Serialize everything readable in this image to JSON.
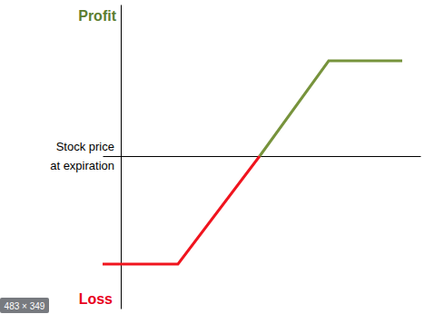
{
  "chart_data": {
    "type": "line",
    "xlabel": [
      "Stock price",
      "at expiration"
    ],
    "annotations": [
      "Profit",
      "Loss",
      "483 × 349"
    ],
    "x": [
      -20,
      63,
      153,
      229,
      310
    ],
    "series": [
      {
        "color": "#f0141e",
        "values": [
          -119,
          -119,
          0,
          null,
          null
        ]
      },
      {
        "color": "#77933c",
        "values": [
          null,
          null,
          0,
          105,
          105
        ]
      }
    ],
    "xlim": [
      -20,
      330
    ],
    "ylim": [
      -168,
      167
    ],
    "xticks": [],
    "yticks": [],
    "grid": false,
    "tick_labels": false
  }
}
